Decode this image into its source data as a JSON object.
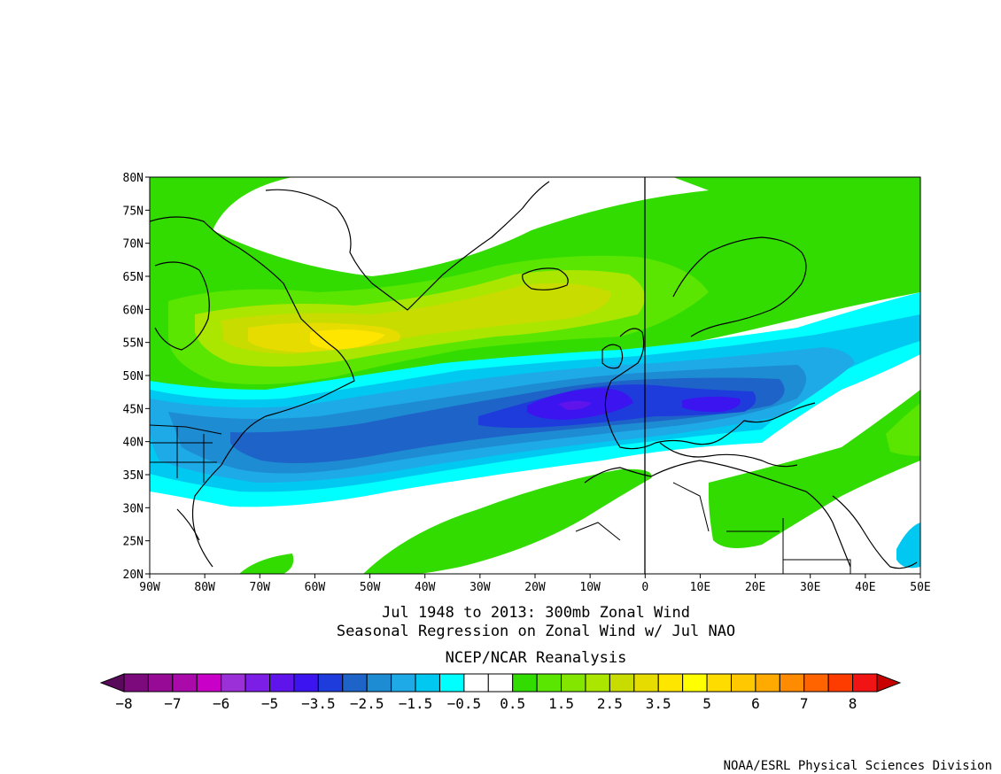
{
  "title_lines": [
    "Jul 1948 to 2013: 300mb Zonal Wind",
    "Seasonal Regression on Zonal Wind  w/ Jul NAO"
  ],
  "subtitle": "NCEP/NCAR Reanalysis",
  "credit": "NOAA/ESRL Physical Sciences Division",
  "map": {
    "lat_labels": [
      "80N",
      "75N",
      "70N",
      "65N",
      "60N",
      "55N",
      "50N",
      "45N",
      "40N",
      "35N",
      "30N",
      "25N",
      "20N"
    ],
    "lon_labels": [
      "90W",
      "80W",
      "70W",
      "60W",
      "50W",
      "40W",
      "30W",
      "20W",
      "10W",
      "0",
      "10E",
      "20E",
      "30E",
      "40E",
      "50E"
    ],
    "lat_range": [
      20,
      80
    ],
    "lon_range": [
      -90,
      50
    ],
    "prime_meridian_line": true
  },
  "colorbar": {
    "colors": [
      "#5a0a5a",
      "#7d0a7d",
      "#960a96",
      "#aa0aaa",
      "#c800c8",
      "#9b2fd8",
      "#7d1ee6",
      "#5f14eb",
      "#3c14f0",
      "#1e3cdc",
      "#1e64c8",
      "#1e8cd2",
      "#1eaae6",
      "#00c8f0",
      "#00ffff",
      "#ffffff",
      "#ffffff",
      "#32dc00",
      "#5ae600",
      "#82e600",
      "#aae600",
      "#c8dc00",
      "#e6dc00",
      "#ffe600",
      "#ffff00",
      "#ffdc00",
      "#ffc800",
      "#ffaa00",
      "#ff8c00",
      "#ff6400",
      "#ff3c00",
      "#f01414",
      "#c80000"
    ],
    "labels": [
      "−8",
      "−7",
      "−6",
      "−5",
      "−3.5",
      "−2.5",
      "−1.5",
      "−0.5",
      "0.5",
      "1.5",
      "2.5",
      "3.5",
      "5",
      "6",
      "7",
      "8"
    ]
  },
  "field_colors": {
    "green": "#32dc00",
    "light_green": "#5ae600",
    "yellow_green": "#aae600",
    "olive_yellow": "#c8dc00",
    "yellow": "#e6dc00",
    "gold": "#ffe600",
    "cyan": "#00ffff",
    "sky": "#00c8f0",
    "light_blue": "#1eaae6",
    "blue": "#1e8cd2",
    "mid_blue": "#1e64c8",
    "royal_blue": "#1e3cdc",
    "indigo": "#3c14f0",
    "violet": "#5f14eb"
  }
}
